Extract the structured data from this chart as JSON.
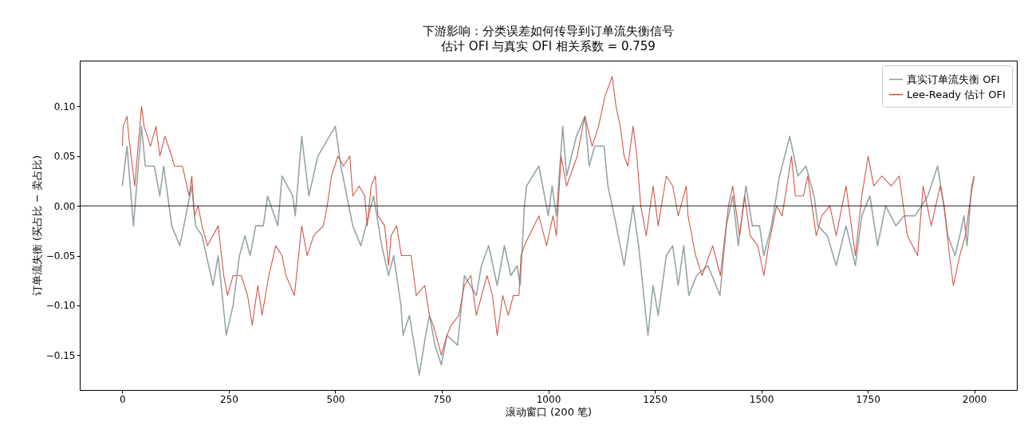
{
  "chart_data": {
    "type": "line",
    "title": "下游影响：分类误差如何传导到订单流失衡信号",
    "subtitle": "估计 OFI 与真实 OFI 相关系数 = 0.759",
    "xlabel": "滚动窗口 (200 笔)",
    "ylabel": "订单流失衡 (买占比 − 卖占比)",
    "xlim": [
      -100,
      2100
    ],
    "xticks": [
      0,
      250,
      500,
      750,
      1000,
      1250,
      1500,
      1750,
      2000
    ],
    "ylim": [
      -0.185,
      0.146
    ],
    "yticks": [
      {
        "value": -0.15,
        "label": "−0.15"
      },
      {
        "value": -0.1,
        "label": "−0.10"
      },
      {
        "value": -0.05,
        "label": "−0.05"
      },
      {
        "value": 0,
        "label": "0.00"
      },
      {
        "value": 0.05,
        "label": "0.05"
      },
      {
        "value": 0.1,
        "label": "0.10"
      }
    ],
    "legend": "top right",
    "grid": false,
    "ref_lines": [
      {
        "axis": "y",
        "value": 0,
        "color": "#000000"
      }
    ],
    "series": [
      {
        "name": "真实订单流失衡 OFI",
        "color": "#95a5a6",
        "x": [
          0,
          11,
          26,
          45,
          54,
          75,
          88,
          97,
          116,
          135,
          163,
          172,
          187,
          213,
          225,
          244,
          260,
          275,
          288,
          300,
          313,
          331,
          341,
          365,
          375,
          400,
          406,
          421,
          438,
          459,
          500,
          513,
          541,
          560,
          590,
          609,
          625,
          637,
          654,
          659,
          674,
          697,
          712,
          721,
          734,
          749,
          762,
          787,
          803,
          831,
          843,
          860,
          880,
          897,
          912,
          927,
          934,
          944,
          949,
          978,
          1000,
          1009,
          1019,
          1034,
          1043,
          1066,
          1086,
          1096,
          1109,
          1131,
          1140,
          1155,
          1178,
          1199,
          1212,
          1234,
          1246,
          1258,
          1277,
          1292,
          1305,
          1318,
          1330,
          1348,
          1375,
          1403,
          1418,
          1433,
          1446,
          1464,
          1479,
          1496,
          1506,
          1524,
          1543,
          1567,
          1586,
          1605,
          1624,
          1633,
          1655,
          1676,
          1699,
          1721,
          1736,
          1755,
          1773,
          1792,
          1816,
          1835,
          1861,
          1891,
          1914,
          1929,
          1938,
          1955,
          1966,
          1976,
          1983,
          1994,
          2000
        ],
        "values": [
          0.02,
          0.06,
          -0.02,
          0.08,
          0.04,
          0.04,
          0.01,
          0.04,
          -0.02,
          -0.04,
          0.02,
          -0.02,
          -0.03,
          -0.08,
          -0.05,
          -0.13,
          -0.1,
          -0.05,
          -0.03,
          -0.05,
          -0.02,
          -0.02,
          0.01,
          -0.02,
          0.03,
          0.01,
          -0.01,
          0.07,
          0.01,
          0.05,
          0.08,
          0.04,
          -0.02,
          -0.04,
          0.01,
          -0.04,
          -0.07,
          -0.05,
          -0.1,
          -0.13,
          -0.11,
          -0.17,
          -0.13,
          -0.11,
          -0.14,
          -0.16,
          -0.13,
          -0.14,
          -0.07,
          -0.09,
          -0.06,
          -0.04,
          -0.08,
          -0.04,
          -0.07,
          -0.06,
          -0.08,
          0,
          0.02,
          0.04,
          -0.01,
          0.02,
          -0.01,
          0.08,
          0.03,
          0.07,
          0.09,
          0.04,
          0.06,
          0.06,
          0.02,
          -0.01,
          -0.06,
          0,
          -0.04,
          -0.13,
          -0.08,
          -0.11,
          -0.05,
          -0.04,
          -0.08,
          -0.04,
          -0.09,
          -0.07,
          -0.06,
          -0.09,
          -0.02,
          0.01,
          -0.04,
          0.02,
          -0.02,
          -0.02,
          -0.05,
          -0.02,
          0.03,
          0.07,
          0.03,
          0.04,
          0.01,
          -0.02,
          -0.03,
          -0.06,
          -0.02,
          -0.06,
          -0.01,
          0.01,
          -0.04,
          0,
          -0.02,
          -0.01,
          -0.01,
          0.01,
          0.04,
          0,
          -0.03,
          -0.05,
          -0.03,
          -0.01,
          -0.04,
          0.02,
          0.03
        ]
      },
      {
        "name": "Lee-Ready 估计 OFI",
        "color": "#cb5a4c",
        "x": [
          0,
          2,
          11,
          15,
          29,
          35,
          45,
          51,
          66,
          79,
          88,
          100,
          116,
          122,
          141,
          157,
          163,
          169,
          178,
          187,
          200,
          225,
          238,
          247,
          260,
          279,
          294,
          305,
          318,
          328,
          344,
          360,
          375,
          384,
          404,
          421,
          434,
          449,
          472,
          481,
          491,
          506,
          519,
          534,
          541,
          556,
          569,
          575,
          584,
          594,
          600,
          616,
          625,
          631,
          644,
          655,
          678,
          690,
          710,
          721,
          730,
          749,
          762,
          772,
          790,
          803,
          818,
          831,
          856,
          869,
          880,
          893,
          906,
          918,
          931,
          936,
          944,
          955,
          978,
          996,
          1011,
          1019,
          1030,
          1043,
          1068,
          1081,
          1086,
          1103,
          1118,
          1133,
          1150,
          1159,
          1169,
          1178,
          1187,
          1199,
          1208,
          1217,
          1230,
          1246,
          1258,
          1277,
          1292,
          1305,
          1324,
          1328,
          1346,
          1361,
          1386,
          1404,
          1423,
          1433,
          1449,
          1461,
          1474,
          1492,
          1506,
          1517,
          1536,
          1549,
          1571,
          1580,
          1599,
          1609,
          1629,
          1642,
          1661,
          1676,
          1699,
          1721,
          1736,
          1751,
          1764,
          1783,
          1805,
          1824,
          1843,
          1867,
          1880,
          1899,
          1920,
          1929,
          1942,
          1951,
          1966,
          1979,
          1992,
          2000
        ],
        "values": [
          0.06,
          0.08,
          0.09,
          0.07,
          0.02,
          0.05,
          0.1,
          0.08,
          0.06,
          0.08,
          0.05,
          0.07,
          0.05,
          0.04,
          0.04,
          0.01,
          0.03,
          -0.01,
          0,
          -0.02,
          -0.04,
          -0.02,
          -0.07,
          -0.09,
          -0.07,
          -0.07,
          -0.09,
          -0.12,
          -0.08,
          -0.11,
          -0.07,
          -0.04,
          -0.05,
          -0.07,
          -0.09,
          -0.02,
          -0.05,
          -0.03,
          -0.02,
          0,
          0.03,
          0.05,
          0.04,
          0.05,
          0.01,
          0.02,
          0.01,
          -0.02,
          0.02,
          0.03,
          -0.01,
          -0.02,
          -0.06,
          -0.03,
          -0.02,
          -0.05,
          -0.05,
          -0.09,
          -0.08,
          -0.11,
          -0.12,
          -0.15,
          -0.13,
          -0.12,
          -0.11,
          -0.08,
          -0.07,
          -0.11,
          -0.07,
          -0.09,
          -0.13,
          -0.09,
          -0.11,
          -0.09,
          -0.09,
          -0.05,
          -0.04,
          -0.03,
          -0.01,
          -0.04,
          -0.01,
          -0.03,
          0.05,
          0.02,
          0.05,
          0.08,
          0.09,
          0.06,
          0.08,
          0.11,
          0.13,
          0.1,
          0.08,
          0.05,
          0.04,
          0.08,
          0.05,
          0,
          -0.03,
          0.02,
          -0.02,
          0.03,
          0.02,
          -0.01,
          0.02,
          -0.01,
          -0.05,
          -0.07,
          -0.04,
          -0.07,
          0,
          0.02,
          -0.03,
          0.01,
          -0.03,
          -0.04,
          -0.07,
          -0.04,
          0,
          -0.01,
          0.05,
          0.01,
          0.01,
          0.03,
          -0.03,
          -0.01,
          0,
          -0.03,
          0.02,
          -0.05,
          0.01,
          0.05,
          0.02,
          0.03,
          0.02,
          0.03,
          -0.03,
          -0.05,
          0.02,
          -0.02,
          0.02,
          0,
          -0.05,
          -0.08,
          -0.05,
          -0.03,
          0.01,
          0.03
        ]
      }
    ]
  }
}
